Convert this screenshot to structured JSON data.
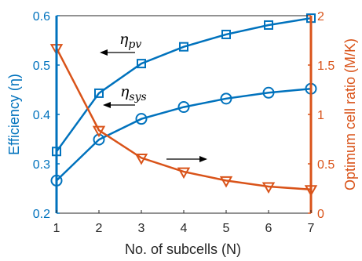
{
  "chart_data": {
    "type": "line",
    "title": "",
    "xlabel": "No. of subcells (N)",
    "ylabel_left": "Efficiency (η)",
    "ylabel_right": "Optimum cell ratio (M/K)",
    "x": [
      1,
      2,
      3,
      4,
      5,
      6,
      7
    ],
    "xlim": [
      1,
      7
    ],
    "ylim_left": [
      0.2,
      0.6
    ],
    "ylim_right": [
      0,
      2
    ],
    "xticks": [
      "1",
      "2",
      "3",
      "4",
      "5",
      "6",
      "7"
    ],
    "yticks_left": [
      "0.2",
      "0.3",
      "0.4",
      "0.5",
      "0.6"
    ],
    "yticks_right": [
      "0",
      "0.5",
      "1",
      "1.5",
      "2"
    ],
    "grid": false,
    "series": [
      {
        "axis": "left",
        "marker": "square",
        "color": "#0072BD",
        "values": [
          0.325,
          0.443,
          0.503,
          0.537,
          0.562,
          0.581,
          0.595
        ]
      },
      {
        "axis": "left",
        "marker": "circle",
        "color": "#0072BD",
        "values": [
          0.266,
          0.349,
          0.391,
          0.415,
          0.432,
          0.444,
          0.452
        ]
      },
      {
        "axis": "right",
        "marker": "triangle-down",
        "color": "#D95319",
        "values": [
          1.67,
          0.84,
          0.56,
          0.42,
          0.33,
          0.27,
          0.24
        ]
      }
    ],
    "annotations": [
      {
        "label_main": "η",
        "label_sub": "pv",
        "arrow": "points-left"
      },
      {
        "label_main": "η",
        "label_sub": "sys",
        "arrow": "points-left"
      },
      {
        "arrow": "points-right"
      }
    ]
  }
}
